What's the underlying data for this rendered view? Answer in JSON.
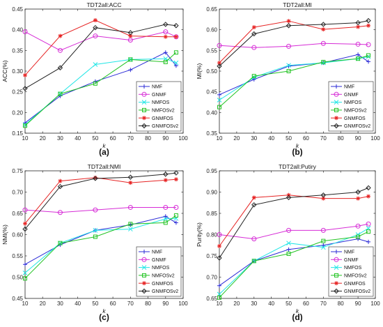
{
  "series_styles": [
    {
      "name": "NMF",
      "color": "#2b2bd6",
      "marker": "plus"
    },
    {
      "name": "GNMF",
      "color": "#d62bd6",
      "marker": "circle"
    },
    {
      "name": "NMFOS",
      "color": "#22e6e6",
      "marker": "x"
    },
    {
      "name": "NMFOSv2",
      "color": "#22c322",
      "marker": "square"
    },
    {
      "name": "GNMFOS",
      "color": "#e62222",
      "marker": "star"
    },
    {
      "name": "GNMFOSv2",
      "color": "#222222",
      "marker": "diamond"
    }
  ],
  "chart_data": [
    {
      "type": "line",
      "panel_label": "(a)",
      "title": "TDT2all:ACC",
      "xlabel": "k",
      "ylabel": "ACC(%)",
      "x": [
        10,
        30,
        50,
        70,
        90,
        96
      ],
      "xlim": [
        10,
        100
      ],
      "xticks": [
        10,
        20,
        30,
        40,
        50,
        60,
        70,
        80,
        90,
        100
      ],
      "ylim": [
        0.15,
        0.45
      ],
      "yticks": [
        0.15,
        0.2,
        0.25,
        0.3,
        0.35,
        0.4,
        0.45
      ],
      "series": [
        {
          "name": "NMF",
          "values": [
            0.175,
            0.24,
            0.275,
            0.303,
            0.345,
            0.313
          ]
        },
        {
          "name": "GNMF",
          "values": [
            0.395,
            0.35,
            0.385,
            0.375,
            0.395,
            0.383
          ]
        },
        {
          "name": "NMFOS",
          "values": [
            0.17,
            0.245,
            0.316,
            0.328,
            0.33,
            0.32
          ]
        },
        {
          "name": "NMFOSv2",
          "values": [
            0.168,
            0.245,
            0.27,
            0.328,
            0.322,
            0.345
          ]
        },
        {
          "name": "GNMFOS",
          "values": [
            0.29,
            0.385,
            0.423,
            0.385,
            0.383,
            0.383
          ]
        },
        {
          "name": "GNMFOSv2",
          "values": [
            0.258,
            0.308,
            0.405,
            0.393,
            0.413,
            0.41
          ]
        }
      ]
    },
    {
      "type": "line",
      "panel_label": "(b)",
      "title": "TDT2all:MI",
      "xlabel": "k",
      "ylabel": "MI(%)",
      "x": [
        10,
        30,
        50,
        70,
        90,
        96
      ],
      "xlim": [
        10,
        100
      ],
      "xticks": [
        10,
        20,
        30,
        40,
        50,
        60,
        70,
        80,
        90,
        100
      ],
      "ylim": [
        0.35,
        0.65
      ],
      "yticks": [
        0.35,
        0.4,
        0.45,
        0.5,
        0.55,
        0.6,
        0.65
      ],
      "series": [
        {
          "name": "NMF",
          "values": [
            0.443,
            0.48,
            0.512,
            0.52,
            0.54,
            0.523
          ]
        },
        {
          "name": "GNMF",
          "values": [
            0.562,
            0.557,
            0.56,
            0.567,
            0.565,
            0.564
          ]
        },
        {
          "name": "NMFOS",
          "values": [
            0.43,
            0.485,
            0.514,
            0.52,
            0.53,
            0.535
          ]
        },
        {
          "name": "NMFOSv2",
          "values": [
            0.413,
            0.488,
            0.5,
            0.522,
            0.53,
            0.538
          ]
        },
        {
          "name": "GNMFOS",
          "values": [
            0.52,
            0.606,
            0.621,
            0.601,
            0.607,
            0.61
          ]
        },
        {
          "name": "GNMFOSv2",
          "values": [
            0.512,
            0.59,
            0.61,
            0.613,
            0.617,
            0.622
          ]
        }
      ]
    },
    {
      "type": "line",
      "panel_label": "(c)",
      "title": "TDT2all:NMI",
      "xlabel": "k",
      "ylabel": "NMI(%)",
      "x": [
        10,
        30,
        50,
        70,
        90,
        96
      ],
      "xlim": [
        10,
        100
      ],
      "xticks": [
        10,
        20,
        30,
        40,
        50,
        60,
        70,
        80,
        90,
        100
      ],
      "ylim": [
        0.45,
        0.75
      ],
      "yticks": [
        0.45,
        0.5,
        0.55,
        0.6,
        0.65,
        0.7,
        0.75
      ],
      "series": [
        {
          "name": "NMF",
          "values": [
            0.53,
            0.576,
            0.61,
            0.623,
            0.643,
            0.628
          ]
        },
        {
          "name": "GNMF",
          "values": [
            0.658,
            0.652,
            0.658,
            0.664,
            0.664,
            0.664
          ]
        },
        {
          "name": "NMFOS",
          "values": [
            0.51,
            0.58,
            0.61,
            0.613,
            0.637,
            0.638
          ]
        },
        {
          "name": "NMFOSv2",
          "values": [
            0.497,
            0.58,
            0.595,
            0.625,
            0.628,
            0.645
          ]
        },
        {
          "name": "GNMFOS",
          "values": [
            0.626,
            0.726,
            0.734,
            0.722,
            0.728,
            0.73
          ]
        },
        {
          "name": "GNMFOSv2",
          "values": [
            0.613,
            0.713,
            0.732,
            0.735,
            0.742,
            0.745
          ]
        }
      ]
    },
    {
      "type": "line",
      "panel_label": "(d)",
      "title": "TDT2all:Putiry",
      "xlabel": "k",
      "ylabel": "Purity(%)",
      "x": [
        10,
        30,
        50,
        70,
        90,
        96
      ],
      "xlim": [
        10,
        100
      ],
      "xticks": [
        10,
        20,
        30,
        40,
        50,
        60,
        70,
        80,
        90,
        100
      ],
      "ylim": [
        0.65,
        0.95
      ],
      "yticks": [
        0.65,
        0.7,
        0.75,
        0.8,
        0.85,
        0.9,
        0.95
      ],
      "series": [
        {
          "name": "NMF",
          "values": [
            0.68,
            0.738,
            0.765,
            0.775,
            0.79,
            0.783
          ]
        },
        {
          "name": "GNMF",
          "values": [
            0.8,
            0.79,
            0.81,
            0.81,
            0.82,
            0.825
          ]
        },
        {
          "name": "NMFOS",
          "values": [
            0.66,
            0.738,
            0.78,
            0.77,
            0.8,
            0.815
          ]
        },
        {
          "name": "NMFOSv2",
          "values": [
            0.652,
            0.738,
            0.755,
            0.785,
            0.795,
            0.807
          ]
        },
        {
          "name": "GNMFOS",
          "values": [
            0.773,
            0.887,
            0.893,
            0.885,
            0.885,
            0.89
          ]
        },
        {
          "name": "GNMFOSv2",
          "values": [
            0.745,
            0.87,
            0.887,
            0.893,
            0.9,
            0.91
          ]
        }
      ]
    }
  ]
}
